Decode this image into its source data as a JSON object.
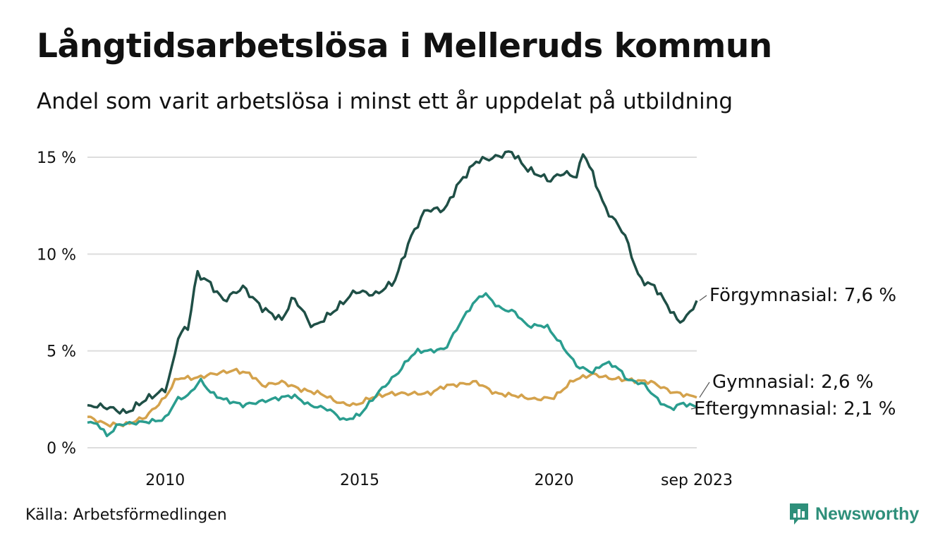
{
  "title": "Långtidsarbetslösa i Melleruds kommun",
  "subtitle": "Andel som varit arbetslösa i minst ett år uppdelat på utbildning",
  "source": "Källa: Arbetsförmedlingen",
  "brand": {
    "name": "Newsworthy",
    "icon": "newsworthy-logo-icon",
    "color": "#2e8f7a"
  },
  "chart_data": {
    "type": "line",
    "x_start": 2008.0,
    "x_step": 0.0833,
    "xlim": [
      2008.0,
      2023.67
    ],
    "ylim": [
      0,
      15
    ],
    "y_ticks": [
      {
        "value": 0,
        "label": "0 %"
      },
      {
        "value": 5,
        "label": "5 %"
      },
      {
        "value": 10,
        "label": "10 %"
      },
      {
        "value": 15,
        "label": "15 %"
      }
    ],
    "x_ticks": [
      {
        "value": 2010,
        "label": "2010"
      },
      {
        "value": 2015,
        "label": "2015"
      },
      {
        "value": 2020,
        "label": "2020"
      },
      {
        "value": 2023.67,
        "label": "sep 2023"
      }
    ],
    "grid": true,
    "legend": "end-of-line labels",
    "series": [
      {
        "name": "Förgymnasial",
        "label": "Förgymnasial: 7,6 %",
        "color": "#1f4f46",
        "anchors": [
          [
            2008.0,
            2.2
          ],
          [
            2008.5,
            2.1
          ],
          [
            2009.0,
            1.8
          ],
          [
            2009.5,
            2.5
          ],
          [
            2010.0,
            3.0
          ],
          [
            2010.2,
            4.3
          ],
          [
            2010.35,
            5.9
          ],
          [
            2010.6,
            6.2
          ],
          [
            2010.8,
            9.0
          ],
          [
            2011.1,
            8.6
          ],
          [
            2011.5,
            7.6
          ],
          [
            2012.0,
            8.3
          ],
          [
            2012.5,
            7.2
          ],
          [
            2013.0,
            6.6
          ],
          [
            2013.3,
            7.8
          ],
          [
            2013.8,
            6.2
          ],
          [
            2014.3,
            7.0
          ],
          [
            2014.9,
            8.1
          ],
          [
            2015.4,
            7.9
          ],
          [
            2015.9,
            8.6
          ],
          [
            2016.3,
            10.8
          ],
          [
            2016.7,
            12.3
          ],
          [
            2017.2,
            12.3
          ],
          [
            2017.5,
            13.5
          ],
          [
            2018.0,
            14.8
          ],
          [
            2018.5,
            15.0
          ],
          [
            2018.9,
            15.3
          ],
          [
            2019.3,
            14.4
          ],
          [
            2019.9,
            13.8
          ],
          [
            2020.2,
            14.2
          ],
          [
            2020.6,
            14.0
          ],
          [
            2020.75,
            15.3
          ],
          [
            2021.0,
            14.1
          ],
          [
            2021.3,
            12.4
          ],
          [
            2021.8,
            11.1
          ],
          [
            2022.2,
            8.7
          ],
          [
            2022.6,
            8.3
          ],
          [
            2022.9,
            7.4
          ],
          [
            2023.2,
            6.5
          ],
          [
            2023.4,
            6.7
          ],
          [
            2023.67,
            7.6
          ]
        ],
        "last_value": 7.6
      },
      {
        "name": "Gymnasial",
        "label": "Gymnasial: 2,6 %",
        "color": "#d4a24c",
        "anchors": [
          [
            2008.0,
            1.6
          ],
          [
            2008.5,
            1.2
          ],
          [
            2009.0,
            1.2
          ],
          [
            2009.5,
            1.6
          ],
          [
            2010.0,
            2.6
          ],
          [
            2010.3,
            3.6
          ],
          [
            2010.8,
            3.6
          ],
          [
            2011.2,
            3.8
          ],
          [
            2011.8,
            4.0
          ],
          [
            2012.2,
            3.8
          ],
          [
            2012.5,
            3.2
          ],
          [
            2013.0,
            3.4
          ],
          [
            2013.5,
            3.0
          ],
          [
            2014.0,
            2.8
          ],
          [
            2014.5,
            2.3
          ],
          [
            2014.9,
            2.2
          ],
          [
            2015.3,
            2.6
          ],
          [
            2015.8,
            2.8
          ],
          [
            2016.3,
            2.8
          ],
          [
            2016.8,
            2.8
          ],
          [
            2017.2,
            3.2
          ],
          [
            2017.7,
            3.3
          ],
          [
            2018.0,
            3.4
          ],
          [
            2018.5,
            2.8
          ],
          [
            2019.0,
            2.7
          ],
          [
            2019.5,
            2.5
          ],
          [
            2020.0,
            2.6
          ],
          [
            2020.5,
            3.5
          ],
          [
            2021.0,
            3.8
          ],
          [
            2021.4,
            3.6
          ],
          [
            2021.9,
            3.5
          ],
          [
            2022.5,
            3.4
          ],
          [
            2023.0,
            2.9
          ],
          [
            2023.67,
            2.6
          ]
        ],
        "last_value": 2.6
      },
      {
        "name": "Eftergymnasial",
        "label": "Eftergymnasial: 2,1 %",
        "color": "#2a9d8f",
        "anchors": [
          [
            2008.0,
            1.3
          ],
          [
            2008.3,
            1.2
          ],
          [
            2008.5,
            0.6
          ],
          [
            2008.8,
            1.2
          ],
          [
            2009.3,
            1.3
          ],
          [
            2009.8,
            1.4
          ],
          [
            2010.0,
            1.5
          ],
          [
            2010.3,
            2.5
          ],
          [
            2010.6,
            2.7
          ],
          [
            2010.9,
            3.5
          ],
          [
            2011.2,
            2.8
          ],
          [
            2011.5,
            2.5
          ],
          [
            2012.0,
            2.2
          ],
          [
            2012.5,
            2.4
          ],
          [
            2013.0,
            2.6
          ],
          [
            2013.3,
            2.7
          ],
          [
            2013.7,
            2.2
          ],
          [
            2014.2,
            2.0
          ],
          [
            2014.6,
            1.4
          ],
          [
            2015.0,
            1.7
          ],
          [
            2015.5,
            2.9
          ],
          [
            2016.0,
            3.9
          ],
          [
            2016.3,
            4.7
          ],
          [
            2016.5,
            5.0
          ],
          [
            2016.8,
            5.0
          ],
          [
            2017.2,
            5.1
          ],
          [
            2017.6,
            6.5
          ],
          [
            2017.9,
            7.4
          ],
          [
            2018.2,
            8.0
          ],
          [
            2018.6,
            7.2
          ],
          [
            2019.0,
            7.0
          ],
          [
            2019.3,
            6.3
          ],
          [
            2019.8,
            6.3
          ],
          [
            2020.2,
            5.3
          ],
          [
            2020.6,
            4.2
          ],
          [
            2021.0,
            3.9
          ],
          [
            2021.3,
            4.4
          ],
          [
            2021.6,
            4.2
          ],
          [
            2021.9,
            3.5
          ],
          [
            2022.3,
            3.3
          ],
          [
            2022.7,
            2.4
          ],
          [
            2023.0,
            2.0
          ],
          [
            2023.3,
            2.3
          ],
          [
            2023.67,
            2.1
          ]
        ],
        "last_value": 2.1
      }
    ]
  }
}
